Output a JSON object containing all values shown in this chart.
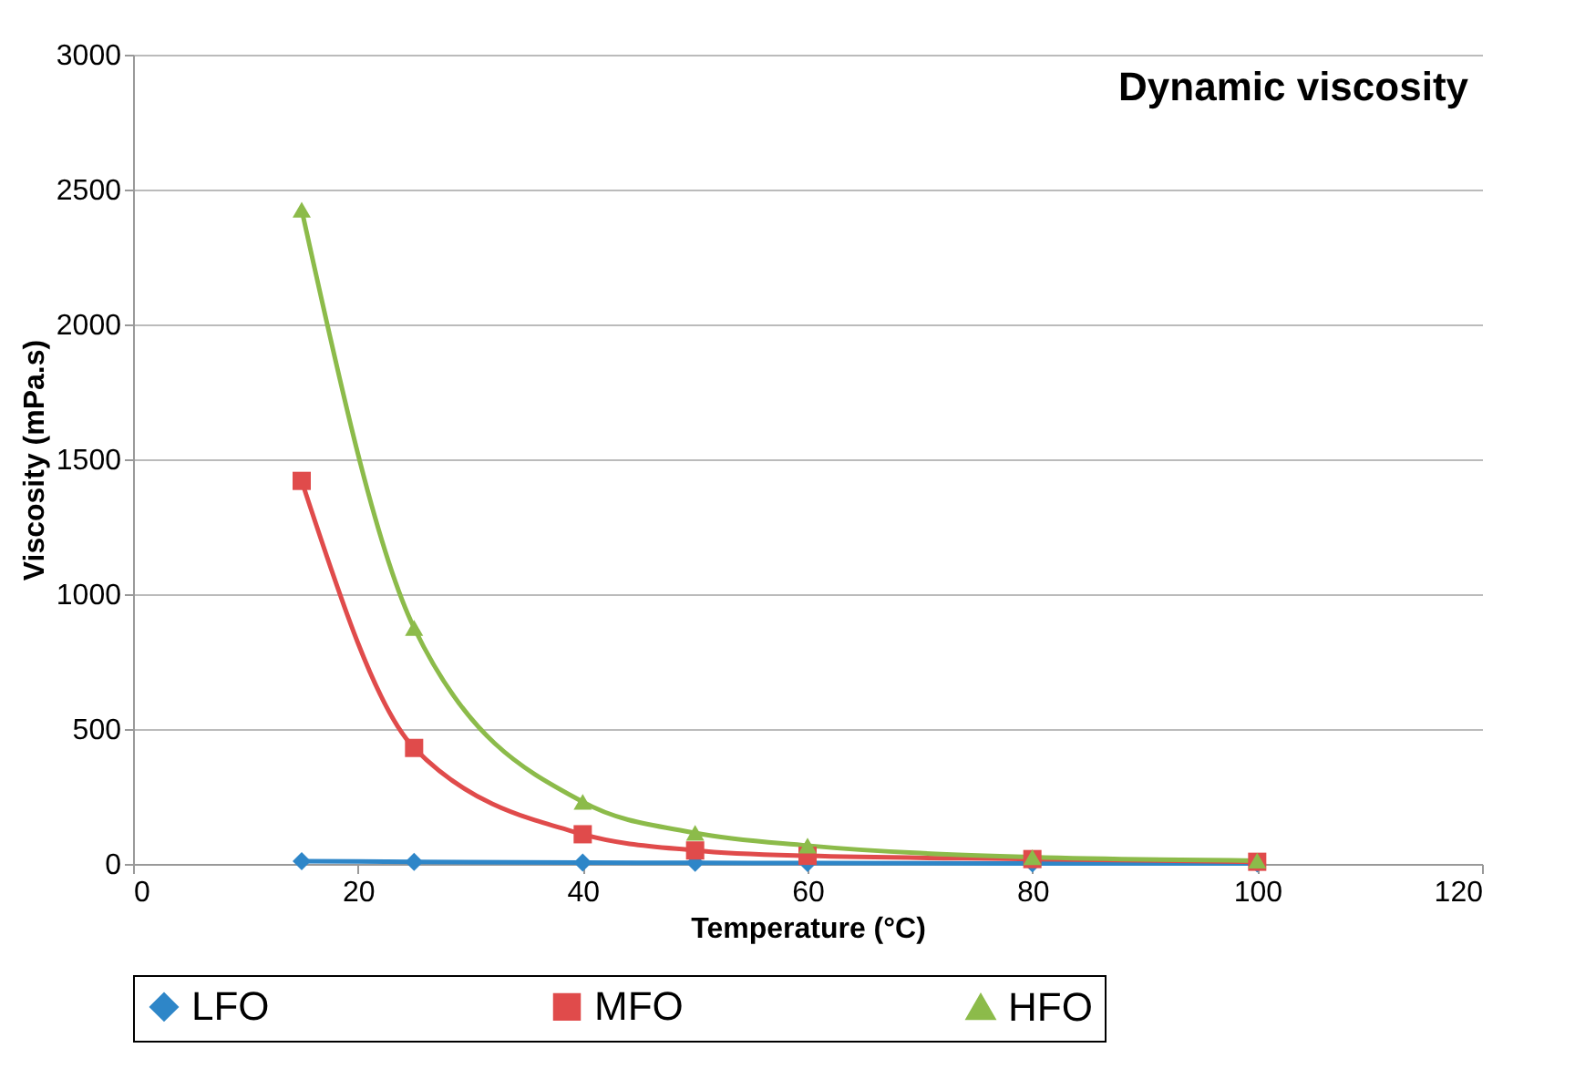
{
  "chart_data": {
    "type": "line",
    "title": "Dynamic viscosity",
    "xlabel": "Temperature (°C)",
    "ylabel": "Viscosity (mPa.s)",
    "x": [
      15,
      25,
      40,
      50,
      60,
      80,
      100
    ],
    "series": [
      {
        "name": "LFO",
        "color": "#2e86c8",
        "marker": "diamond",
        "values": [
          10,
          8,
          5,
          4,
          3,
          2,
          2
        ]
      },
      {
        "name": "MFO",
        "color": "#e04b4b",
        "marker": "square",
        "values": [
          1420,
          430,
          110,
          50,
          30,
          18,
          8
        ]
      },
      {
        "name": "HFO",
        "color": "#8cbb4a",
        "marker": "triangle",
        "values": [
          2425,
          875,
          230,
          115,
          68,
          25,
          12
        ]
      }
    ],
    "xlim": [
      0,
      120
    ],
    "xticks": [
      0,
      20,
      40,
      60,
      80,
      100,
      120
    ],
    "ylim": [
      0,
      3000
    ],
    "yticks": [
      0,
      500,
      1000,
      1500,
      2000,
      2500,
      3000
    ],
    "grid": "y",
    "legend": "bottom",
    "line_style": "solid"
  }
}
